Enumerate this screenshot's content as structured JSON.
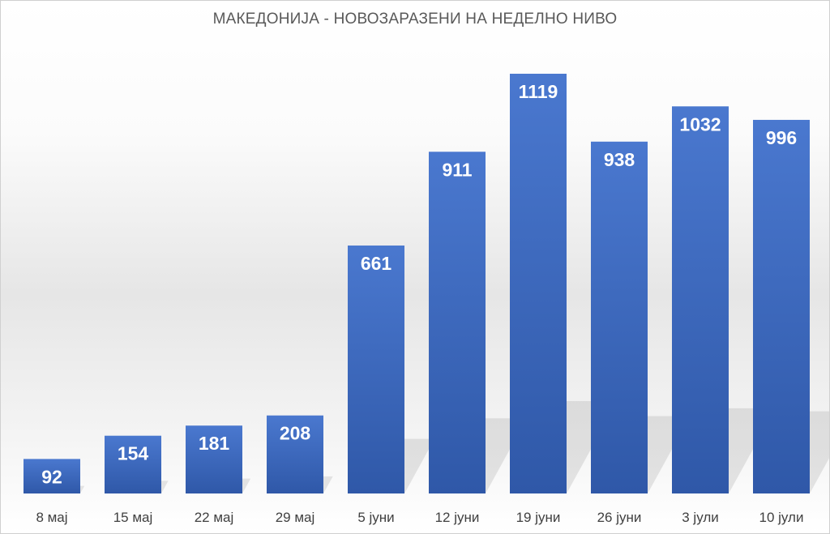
{
  "chart_data": {
    "type": "bar",
    "title": "МАКЕДОНИЈА - НОВОЗАРАЗЕНИ НА НЕДЕЛНО НИВО",
    "categories": [
      "8 мај",
      "15 мај",
      "22 мај",
      "29 мај",
      "5 јуни",
      "12 јуни",
      "19 јуни",
      "26 јуни",
      "3 јули",
      "10 јули"
    ],
    "values": [
      92,
      154,
      181,
      208,
      661,
      911,
      1119,
      938,
      1032,
      996
    ],
    "xlabel": "",
    "ylabel": "",
    "ylim": [
      0,
      1119
    ],
    "grid": false,
    "legend": "none",
    "data_labels": "inside-top",
    "colors": {
      "bar_top": "#4a78cf",
      "bar_bottom": "#2f58a8",
      "label": "#ffffff",
      "tick": "#404040",
      "title": "#595959"
    }
  }
}
